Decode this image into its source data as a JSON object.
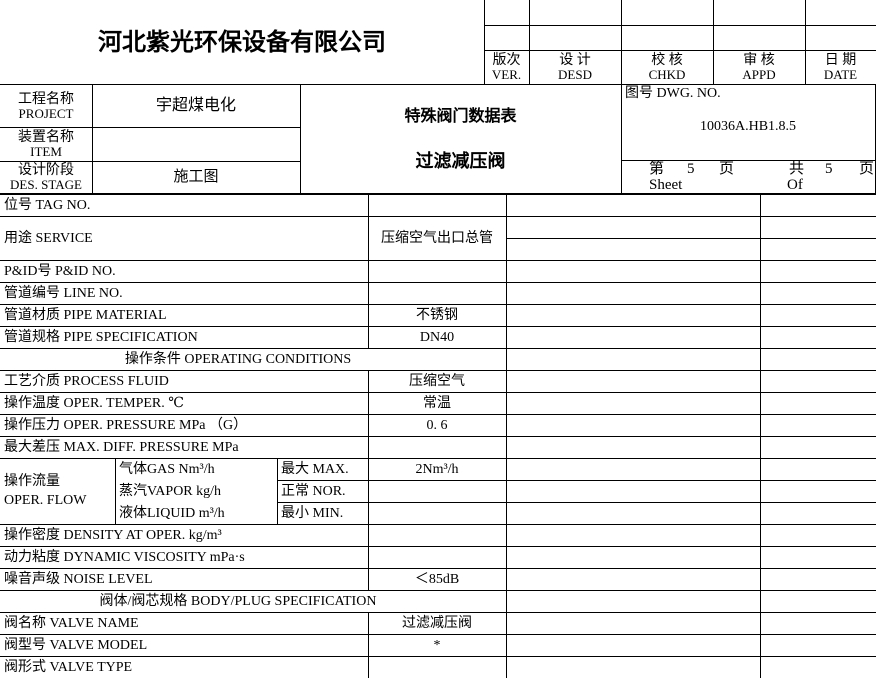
{
  "company": "河北紫光环保设备有限公司",
  "signoff": {
    "ver_cn": "版次",
    "ver_en": "VER.",
    "desd_cn": "设 计",
    "desd_en": "DESD",
    "chkd_cn": "校 核",
    "chkd_en": "CHKD",
    "appd_cn": "审 核",
    "appd_en": "APPD",
    "date_cn": "日 期",
    "date_en": "DATE"
  },
  "info": {
    "project_cn": "工程名称",
    "project_en": "PROJECT",
    "project_value": "宇超煤电化",
    "item_cn": "装置名称",
    "item_en": "ITEM",
    "item_value": "",
    "stage_cn": "设计阶段",
    "stage_en": "DES. STAGE",
    "stage_value": "施工图",
    "doc_title": "特殊阀门数据表",
    "doc_subtitle": "过滤减压阀",
    "dwg_label": "图号 DWG. NO.",
    "dwg_no": "10036A.HB1.8.5",
    "sheet_label": "第",
    "sheet_no": "5",
    "page_unit": "页",
    "sheet_en": "Sheet",
    "of_label": "共",
    "of_no": "5",
    "of_en": "Of"
  },
  "rows": {
    "tag": "位号 TAG NO.",
    "service": "用途 SERVICE",
    "service_value": "压缩空气出口总管",
    "pid": "P&ID号 P&ID NO.",
    "line": "管道编号 LINE NO.",
    "pipe_material": "管道材质 PIPE MATERIAL",
    "pipe_material_value": "不锈钢",
    "pipe_spec": "管道规格 PIPE SPECIFICATION",
    "pipe_spec_value": "DN40",
    "operating_header": "操作条件  OPERATING CONDITIONS",
    "fluid": "工艺介质 PROCESS FLUID",
    "fluid_value": "压缩空气",
    "temper": "操作温度 OPER. TEMPER. ℃",
    "temper_value": "常温",
    "pressure": "操作压力 OPER. PRESSURE MPa （G）",
    "pressure_value": "0. 6",
    "max_diff": "最大差压 MAX. DIFF. PRESSURE MPa",
    "flow_cn": "操作流量",
    "flow_en": "OPER. FLOW",
    "gas": "气体GAS Nm³/h",
    "vapor": "蒸汽VAPOR kg/h",
    "liquid": "液体LIQUID m³/h",
    "max": "最大 MAX.",
    "nor": "正常 NOR.",
    "min": "最小 MIN.",
    "max_value": "2Nm³/h",
    "density": "操作密度 DENSITY AT OPER. kg/m³",
    "viscosity": "动力粘度 DYNAMIC VISCOSITY mPa·s",
    "noise": "噪音声级 NOISE LEVEL",
    "noise_value": "＜85dB",
    "body_header": "阀体/阀芯规格  BODY/PLUG SPECIFICATION",
    "valve_name": "阀名称 VALVE NAME",
    "valve_name_value": "过滤减压阀",
    "valve_model": "阀型号 VALVE MODEL",
    "valve_model_value": "*",
    "valve_type": "阀形式 VALVE TYPE"
  }
}
